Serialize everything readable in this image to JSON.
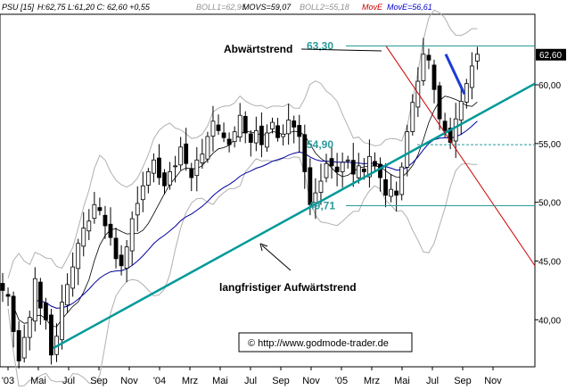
{
  "chart_data": {
    "type": "candlestick",
    "header": {
      "symbol": "PSU [15]",
      "ohlc": "H:62,75 L:61,20 C: 62,60 +0,55",
      "boll1": "BOLL1=62,95",
      "movs": "MOVS=59,07",
      "boll2": "BOLL2=55,18",
      "move": "MovE",
      "move2": "MovE=56,61"
    },
    "colors": {
      "background": "#ffffff",
      "candle": "#000000",
      "bollinger": "#b0b0b0",
      "movs": "#000000",
      "move2": "#0000a0",
      "trendline": "#009999",
      "downline": "#cc0000",
      "projection": "#1c3cd4",
      "levels": "#2a9a9a",
      "move_label": "#cc0000",
      "move2_label": "#0000cc",
      "boll_label": "#909090"
    },
    "y_axis": {
      "ylim": [
        36,
        66
      ],
      "ticks": [
        {
          "value": 40,
          "label": "40,00"
        },
        {
          "value": 45,
          "label": "45,00"
        },
        {
          "value": 50,
          "label": "50,00"
        },
        {
          "value": 55,
          "label": "55,00"
        },
        {
          "value": 60,
          "label": "60,00"
        }
      ],
      "last_price": {
        "value": 62.6,
        "label": "62,60"
      }
    },
    "x_axis": {
      "labels": [
        "'03",
        "Mai",
        "Jul",
        "Sep",
        "Nov",
        "'04",
        "Mrz",
        "Mai",
        "Jul",
        "Sep",
        "Nov",
        "'05",
        "Mrz",
        "Mai",
        "Jul",
        "Sep",
        "Nov"
      ]
    },
    "levels": [
      {
        "value": 63.3,
        "label": "63,30",
        "style": "solid"
      },
      {
        "value": 54.9,
        "label": "54,90",
        "style": "dashed"
      },
      {
        "value": 49.71,
        "label": "49,71",
        "style": "solid"
      }
    ],
    "close_series": [
      42.5,
      42,
      39,
      36.5,
      38.5,
      40.2,
      43.5,
      41,
      40,
      37,
      38.6,
      41.5,
      43,
      44.5,
      46.5,
      47.8,
      48.4,
      49.8,
      49.3,
      48,
      47,
      45.2,
      44.6,
      46.2,
      48.6,
      49.9,
      51.4,
      52.6,
      53.6,
      52.1,
      51.4,
      52.6,
      53.1,
      54.7,
      53.3,
      52.1,
      53.6,
      54.1,
      55.6,
      56.9,
      56.1,
      55.5,
      54.9,
      56,
      57.4,
      55.9,
      55.1,
      56.1,
      54.9,
      55.9,
      56.8,
      55.5,
      55.8,
      57,
      56.4,
      55.6,
      52.6,
      49.8,
      50.8,
      51.8,
      53.3,
      53.1,
      52.6,
      53.4,
      53.6,
      52.4,
      53.1,
      52.6,
      53.9,
      53.1,
      52.1,
      50.6,
      51.1,
      50.6,
      53,
      56,
      58.5,
      60.3,
      62.6,
      62.1,
      59.6,
      57.1,
      56.1,
      55.1,
      57.1,
      58.6,
      60.1,
      61.6,
      62.6
    ],
    "annotations": [
      {
        "text": "Abwärtstrend"
      },
      {
        "text": "langfristiger Aufwärtstrend"
      }
    ],
    "credit": "© http://www.godmode-trader.de"
  }
}
